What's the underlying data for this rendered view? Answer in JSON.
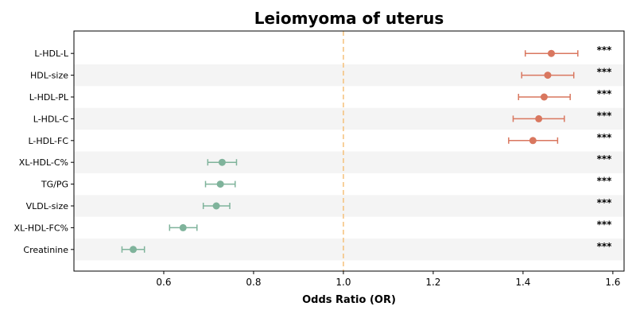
{
  "chart_data": {
    "type": "forest",
    "title": "Leiomyoma of uterus",
    "xlabel": "Odds Ratio (OR)",
    "xlim": [
      0.4,
      1.625
    ],
    "xticks": [
      0.6,
      0.8,
      1.0,
      1.2,
      1.4,
      1.6
    ],
    "xtick_labels": [
      "0.6",
      "0.8",
      "1.0",
      "1.2",
      "1.4",
      "1.6"
    ],
    "reference_line": 1.0,
    "colors": {
      "increase": "#d9775f",
      "decrease": "#7fb39b",
      "reference": "#f5c07a",
      "band": "#f4f4f4"
    },
    "rows": [
      {
        "label": "L-HDL-L",
        "or": 1.463,
        "lo": 1.405,
        "hi": 1.522,
        "sig": "***"
      },
      {
        "label": "HDL-size",
        "or": 1.455,
        "lo": 1.397,
        "hi": 1.513,
        "sig": "***"
      },
      {
        "label": "L-HDL-PL",
        "or": 1.447,
        "lo": 1.39,
        "hi": 1.505,
        "sig": "***"
      },
      {
        "label": "L-HDL-C",
        "or": 1.435,
        "lo": 1.378,
        "hi": 1.492,
        "sig": "***"
      },
      {
        "label": "L-HDL-FC",
        "or": 1.422,
        "lo": 1.368,
        "hi": 1.477,
        "sig": "***"
      },
      {
        "label": "XL-HDL-C%",
        "or": 0.73,
        "lo": 0.698,
        "hi": 0.762,
        "sig": "***"
      },
      {
        "label": "TG/PG",
        "or": 0.726,
        "lo": 0.693,
        "hi": 0.759,
        "sig": "***"
      },
      {
        "label": "VLDL-size",
        "or": 0.717,
        "lo": 0.688,
        "hi": 0.747,
        "sig": "***"
      },
      {
        "label": "XL-HDL-FC%",
        "or": 0.643,
        "lo": 0.613,
        "hi": 0.674,
        "sig": "***"
      },
      {
        "label": "Creatinine",
        "or": 0.532,
        "lo": 0.507,
        "hi": 0.557,
        "sig": "***"
      }
    ]
  }
}
